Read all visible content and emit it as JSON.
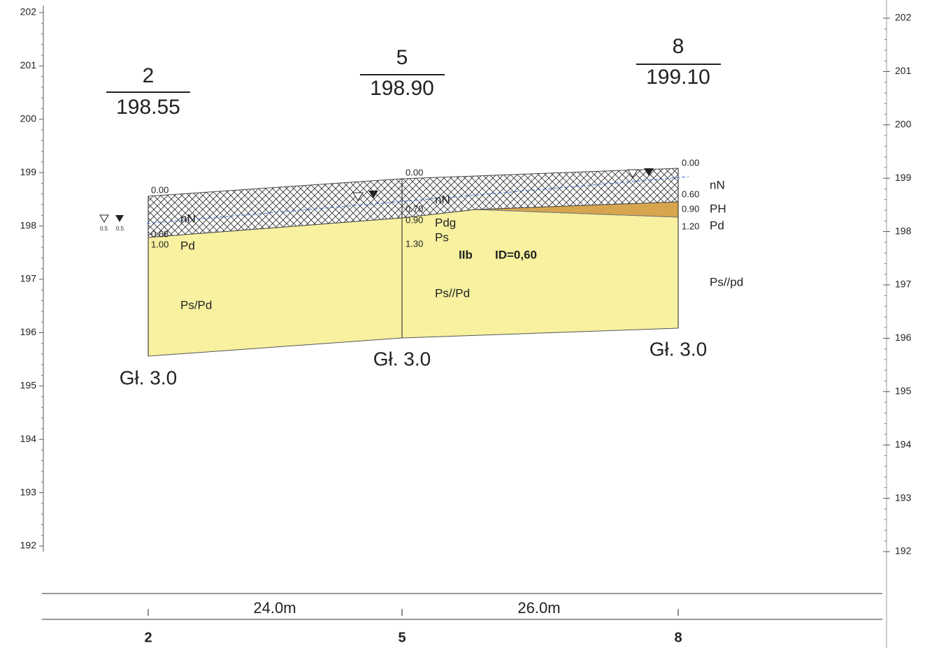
{
  "axis": {
    "left_ticks": [
      "202",
      "201",
      "200",
      "199",
      "198",
      "197",
      "196",
      "195",
      "194",
      "193",
      "192"
    ],
    "right_ticks": [
      "202",
      "201",
      "200",
      "199",
      "198",
      "197",
      "196",
      "195",
      "194",
      "193",
      "192"
    ]
  },
  "boreholes": [
    {
      "id": "2",
      "elevation": "198.55",
      "bottom": "Gł. 3.0",
      "depths": [
        "0.00",
        "0.68",
        "1.00"
      ],
      "soils": [
        "nN",
        "Pd",
        "Ps/Pd"
      ],
      "water": [
        "0.5",
        "0.5"
      ]
    },
    {
      "id": "5",
      "elevation": "198.90",
      "bottom": "Gł. 3.0",
      "depths": [
        "0.00",
        "0.70",
        "0.90",
        "1.30"
      ],
      "soils": [
        "nN",
        "Pdg",
        "Ps",
        "Ps//Pd"
      ]
    },
    {
      "id": "8",
      "elevation": "199.10",
      "bottom": "Gł. 3.0",
      "depths": [
        "0.00",
        "0.60",
        "0.90",
        "1.20"
      ],
      "soils": [
        "nN",
        "PH",
        "Pd",
        "Ps//pd"
      ]
    }
  ],
  "zone": "IIb",
  "density": "ID=0,60",
  "distances": [
    "24.0m",
    "26.0m"
  ],
  "stations": [
    "2",
    "5",
    "8"
  ]
}
